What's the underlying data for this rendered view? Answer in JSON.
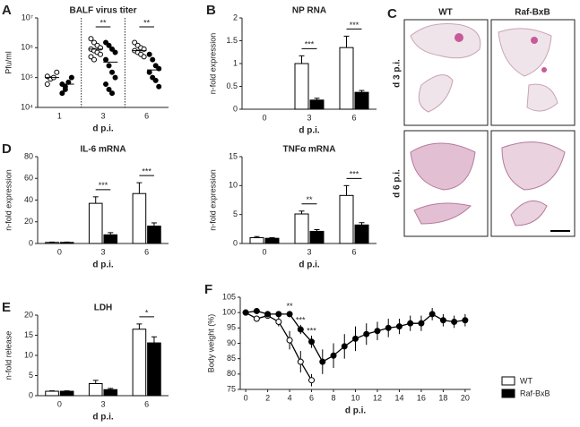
{
  "chart_data": [
    {
      "type": "strip",
      "panel": "A",
      "title": "BALF virus titer",
      "ylabel": "Pfu/ml",
      "xlabel": "d p.i.",
      "categories": [
        "1",
        "3",
        "6"
      ],
      "log_scale": true,
      "separators": true,
      "ylim": [
        10000,
        10000000
      ],
      "yticks": [
        {
          "value": 10000,
          "label": "10⁴"
        },
        {
          "value": 100000,
          "label": "10⁵"
        },
        {
          "value": 1000000,
          "label": "10⁶"
        },
        {
          "value": 10000000,
          "label": "10⁷"
        }
      ],
      "series": [
        {
          "name": "WT",
          "color": "#ffffff",
          "values": [
            [
              60000,
              90000,
              100000,
              150000,
              110000
            ],
            [
              2000000,
              1500000,
              1200000,
              1000000,
              900000,
              800000,
              700000,
              600000,
              500000,
              400000
            ],
            [
              1500000,
              1200000,
              1000000,
              900000,
              800000,
              700000,
              600000,
              500000
            ]
          ],
          "means": [
            100000,
            900000,
            800000
          ]
        },
        {
          "name": "Raf-BxB",
          "color": "#000000",
          "values": [
            [
              30000,
              50000,
              70000,
              100000,
              60000,
              40000
            ],
            [
              1500000,
              1200000,
              900000,
              700000,
              400000,
              250000,
              150000,
              100000,
              60000,
              40000,
              30000
            ],
            [
              600000,
              400000,
              250000,
              200000,
              150000,
              100000,
              80000,
              50000
            ]
          ],
          "means": [
            60000,
            330000,
            180000
          ]
        }
      ],
      "significance": [
        null,
        "**",
        "**"
      ]
    },
    {
      "type": "bar",
      "panel": "B",
      "title": "NP RNA",
      "ylabel": "n-fold expression",
      "xlabel": "d p.i.",
      "categories": [
        "0",
        "3",
        "6"
      ],
      "ylim": [
        0,
        2
      ],
      "yticks": [
        0,
        0.5,
        1,
        1.5,
        2
      ],
      "series": [
        {
          "name": "WT",
          "color": "#ffffff",
          "values": [
            null,
            1.0,
            1.35
          ],
          "errors": [
            null,
            0.17,
            0.25
          ]
        },
        {
          "name": "Raf-BxB",
          "color": "#000000",
          "values": [
            null,
            0.2,
            0.37
          ],
          "errors": [
            null,
            0.04,
            0.04
          ]
        }
      ],
      "significance": [
        null,
        "***",
        "***"
      ]
    },
    {
      "type": "bar",
      "panel": "D",
      "title": "IL-6 mRNA",
      "ylabel": "n-fold expression",
      "xlabel": "d p.i.",
      "categories": [
        "0",
        "3",
        "6"
      ],
      "ylim": [
        0,
        80
      ],
      "yticks": [
        0,
        20,
        40,
        60,
        80
      ],
      "series": [
        {
          "name": "WT",
          "color": "#ffffff",
          "values": [
            1,
            37,
            46
          ],
          "errors": [
            0.3,
            6,
            10
          ]
        },
        {
          "name": "Raf-BxB",
          "color": "#000000",
          "values": [
            1,
            8,
            16
          ],
          "errors": [
            0.3,
            2,
            3
          ]
        }
      ],
      "significance": [
        null,
        "***",
        "***"
      ]
    },
    {
      "type": "bar",
      "title": "TNFα mRNA",
      "ylabel": "n-fold expression",
      "xlabel": "d p.i.",
      "categories": [
        "0",
        "3",
        "6"
      ],
      "ylim": [
        0,
        15
      ],
      "yticks": [
        0,
        5,
        10,
        15
      ],
      "series": [
        {
          "name": "WT",
          "color": "#ffffff",
          "values": [
            1,
            5.1,
            8.3
          ],
          "errors": [
            0.2,
            0.5,
            1.7
          ]
        },
        {
          "name": "Raf-BxB",
          "color": "#000000",
          "values": [
            0.9,
            2.1,
            3.2
          ],
          "errors": [
            0.1,
            0.3,
            0.4
          ]
        }
      ],
      "significance": [
        null,
        "**",
        "***"
      ]
    },
    {
      "type": "bar",
      "panel": "E",
      "title": "LDH",
      "ylabel": "n-fold release",
      "xlabel": "d p.i.",
      "categories": [
        "0",
        "3",
        "6"
      ],
      "ylim": [
        0,
        20
      ],
      "yticks": [
        0,
        5,
        10,
        15,
        20
      ],
      "series": [
        {
          "name": "WT",
          "color": "#ffffff",
          "values": [
            1.1,
            3,
            16.5
          ],
          "errors": [
            0.1,
            0.8,
            1.3
          ]
        },
        {
          "name": "Raf-BxB",
          "color": "#000000",
          "values": [
            1.1,
            1.5,
            13.1
          ],
          "errors": [
            0.1,
            0.3,
            1.5
          ]
        }
      ],
      "significance": [
        null,
        null,
        "*"
      ]
    },
    {
      "type": "line",
      "panel": "F",
      "ylabel": "Body weight (%)",
      "xlabel": "d p.i.",
      "x": [
        0,
        1,
        2,
        3,
        4,
        5,
        6,
        7,
        8,
        9,
        10,
        11,
        12,
        13,
        14,
        15,
        16,
        17,
        18,
        19,
        20
      ],
      "xlim": [
        -0.5,
        20.5
      ],
      "xticks": [
        0,
        2,
        4,
        6,
        8,
        10,
        12,
        14,
        16,
        18,
        20
      ],
      "ylim": [
        75,
        105
      ],
      "yticks": [
        75,
        80,
        85,
        90,
        95,
        100,
        105
      ],
      "series": [
        {
          "name": "WT",
          "color": "#ffffff",
          "values": [
            100,
            98,
            99,
            97,
            91,
            84,
            78,
            null,
            null,
            null,
            null,
            null,
            null,
            null,
            null,
            null,
            null,
            null,
            null,
            null,
            null
          ],
          "errors": [
            0.5,
            1,
            1,
            1.5,
            3,
            3.5,
            2,
            null,
            null,
            null,
            null,
            null,
            null,
            null,
            null,
            null,
            null,
            null,
            null,
            null,
            null
          ]
        },
        {
          "name": "Raf-BxB",
          "color": "#000000",
          "values": [
            100,
            100.5,
            99.5,
            99.5,
            99.5,
            94.5,
            90.5,
            84,
            86,
            89,
            91.5,
            93,
            94,
            95,
            95.5,
            96.5,
            96.5,
            99.5,
            97.5,
            97,
            97.5
          ],
          "errors": [
            0.5,
            0.5,
            1,
            1,
            1,
            1.5,
            2,
            4,
            4,
            4,
            4,
            3.5,
            3,
            3,
            2.5,
            2.5,
            2.5,
            2,
            2,
            2,
            2
          ]
        }
      ],
      "significance": [
        {
          "x": 4,
          "label": "**"
        },
        {
          "x": 5,
          "label": "***"
        },
        {
          "x": 6,
          "label": "***"
        }
      ]
    }
  ],
  "histology": {
    "panel": "C",
    "columns": [
      "WT",
      "Raf-BxB"
    ],
    "rows": [
      "d 3 p.i.",
      "d 6 p.i."
    ]
  }
}
